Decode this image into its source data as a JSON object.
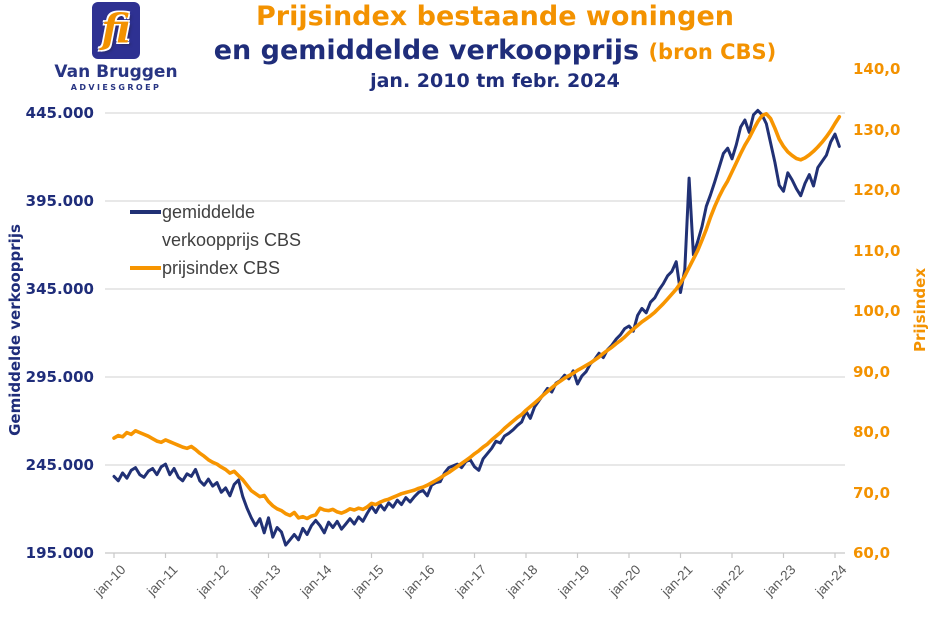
{
  "logo": {
    "glyph": "fi",
    "name": "Van Bruggen",
    "subtitle": "ADVIESGROEP"
  },
  "title": {
    "line1": "Prijsindex bestaande woningen",
    "line2": "en gemiddelde verkoopprijs",
    "line2_suffix": "(bron CBS)",
    "line3": "jan. 2010 tm febr. 2024"
  },
  "legend": {
    "item1_line1": "gemiddelde",
    "item1_line2": "verkoopprijs CBS",
    "item2": "prijsindex CBS"
  },
  "colors": {
    "navy": "#1f2d7a",
    "orange": "#f39200",
    "line_blue": "#213175",
    "line_orange": "#f79500",
    "gridline": "#d9d9d9",
    "axis_line": "#c8c8c8",
    "x_label": "#595959",
    "legend_text": "#404040"
  },
  "chart_data": {
    "type": "line",
    "title": "Prijsindex bestaande woningen en gemiddelde verkoopprijs (bron CBS) jan. 2010 tm febr. 2024",
    "x_frequency": "monthly",
    "x_start": "2010-01",
    "x_end": "2024-02",
    "x_tick_labels": [
      "jan-10",
      "jan-11",
      "jan-12",
      "jan-13",
      "jan-14",
      "jan-15",
      "jan-16",
      "jan-17",
      "jan-18",
      "jan-19",
      "jan-20",
      "jan-21",
      "jan-22",
      "jan-23",
      "jan-24"
    ],
    "grid": "horizontal",
    "legend_position": "inside-top-left",
    "left_axis": {
      "label": "Gemiddelde verkoopprijs",
      "unit": "EUR",
      "min": 195000,
      "max": 470000,
      "ticks": [
        {
          "label": "445.000",
          "value": 445000
        },
        {
          "label": "395.000",
          "value": 395000
        },
        {
          "label": "345.000",
          "value": 345000
        },
        {
          "label": "295.000",
          "value": 295000
        },
        {
          "label": "245.000",
          "value": 245000
        },
        {
          "label": "195.000",
          "value": 195000
        }
      ]
    },
    "right_axis": {
      "label": "Prijsindex",
      "min": 60,
      "max": 140,
      "ticks": [
        {
          "label": "140,0",
          "value": 140
        },
        {
          "label": "130,0",
          "value": 130
        },
        {
          "label": "120,0",
          "value": 120
        },
        {
          "label": "110,0",
          "value": 110
        },
        {
          "label": "100,0",
          "value": 100
        },
        {
          "label": "90,0",
          "value": 90
        },
        {
          "label": "80,0",
          "value": 80
        },
        {
          "label": "70,0",
          "value": 70
        },
        {
          "label": "60,0",
          "value": 60
        }
      ]
    },
    "series": [
      {
        "id": "verkoopprijs",
        "name": "gemiddelde verkoopprijs CBS",
        "axis": "left",
        "color": "#213175",
        "width": 3,
        "values": [
          238500,
          236000,
          240500,
          237500,
          242000,
          243500,
          239500,
          238000,
          241500,
          243000,
          239500,
          244000,
          245500,
          239500,
          243000,
          238000,
          236000,
          240000,
          238500,
          242500,
          236000,
          233500,
          237000,
          233000,
          235000,
          229500,
          232000,
          227500,
          234000,
          236500,
          227000,
          220500,
          215000,
          210500,
          214500,
          206500,
          215000,
          204000,
          209500,
          207000,
          199500,
          202500,
          205500,
          202500,
          209000,
          205500,
          210500,
          213500,
          210500,
          206500,
          212500,
          209500,
          213000,
          208500,
          211500,
          214500,
          211500,
          215500,
          213000,
          217500,
          221500,
          218000,
          222500,
          219500,
          223500,
          221000,
          225000,
          222500,
          226500,
          224000,
          227000,
          229500,
          230500,
          227500,
          233500,
          235000,
          235500,
          240500,
          243500,
          244500,
          245500,
          243500,
          247000,
          248000,
          244000,
          242000,
          248500,
          251500,
          254500,
          258500,
          257500,
          261500,
          263000,
          265000,
          267500,
          269500,
          275500,
          271500,
          278000,
          281500,
          285000,
          288500,
          286500,
          291500,
          293000,
          296000,
          294000,
          298500,
          291000,
          295500,
          298000,
          302500,
          305000,
          308500,
          306000,
          310500,
          313000,
          316500,
          319000,
          322500,
          324000,
          321000,
          330000,
          334000,
          331500,
          337500,
          340000,
          344500,
          348000,
          352500,
          355000,
          360500,
          343000,
          356000,
          408000,
          364500,
          372000,
          380500,
          392000,
          398500,
          406000,
          414000,
          422000,
          425000,
          419000,
          427000,
          437000,
          441000,
          434000,
          444000,
          446500,
          444000,
          439000,
          428000,
          417000,
          404000,
          400500,
          411000,
          407000,
          402000,
          398000,
          405000,
          410000,
          403500,
          414000,
          417500,
          421000,
          428500,
          433000,
          426000
        ]
      },
      {
        "id": "prijsindex",
        "name": "prijsindex CBS",
        "axis": "right",
        "color": "#f79500",
        "width": 3.6,
        "values": [
          79.0,
          79.4,
          79.2,
          79.9,
          79.6,
          80.2,
          79.9,
          79.6,
          79.3,
          78.9,
          78.5,
          78.3,
          78.7,
          78.4,
          78.1,
          77.8,
          77.5,
          77.3,
          77.6,
          77.1,
          76.5,
          76.0,
          75.4,
          75.0,
          74.7,
          74.2,
          73.8,
          73.2,
          73.5,
          72.8,
          72.1,
          71.2,
          70.3,
          69.8,
          69.3,
          69.5,
          68.5,
          67.8,
          67.3,
          67.0,
          66.5,
          66.2,
          66.7,
          65.8,
          66.0,
          65.7,
          66.1,
          66.3,
          67.4,
          67.1,
          67.0,
          67.2,
          66.8,
          66.6,
          66.9,
          67.3,
          67.1,
          67.4,
          67.2,
          67.6,
          68.2,
          68.0,
          68.4,
          68.7,
          68.9,
          69.2,
          69.5,
          69.8,
          70.0,
          70.2,
          70.4,
          70.7,
          70.9,
          71.2,
          71.6,
          72.0,
          72.4,
          72.9,
          73.3,
          73.8,
          74.3,
          74.8,
          75.3,
          75.8,
          76.4,
          76.9,
          77.5,
          78.0,
          78.7,
          79.3,
          79.9,
          80.6,
          81.2,
          81.8,
          82.4,
          82.9,
          83.6,
          84.2,
          84.8,
          85.4,
          86.1,
          86.7,
          87.3,
          87.9,
          88.4,
          88.9,
          89.3,
          89.7,
          90.2,
          90.6,
          91.0,
          91.4,
          91.9,
          92.4,
          93.0,
          93.5,
          94.0,
          94.6,
          95.1,
          95.7,
          96.4,
          97.0,
          97.6,
          98.2,
          98.7,
          99.2,
          99.8,
          100.5,
          101.2,
          102.0,
          102.8,
          103.6,
          104.6,
          105.8,
          107.2,
          108.6,
          110.0,
          111.7,
          113.5,
          115.5,
          117.3,
          118.9,
          120.3,
          121.5,
          123.0,
          124.5,
          126.0,
          127.4,
          128.6,
          130.0,
          131.3,
          132.3,
          132.6,
          131.8,
          130.2,
          128.4,
          127.2,
          126.3,
          125.7,
          125.2,
          125.0,
          125.3,
          125.8,
          126.4,
          127.1,
          127.9,
          128.8,
          129.8,
          131.0,
          132.1
        ]
      }
    ]
  }
}
